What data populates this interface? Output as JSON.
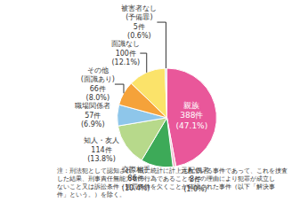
{
  "chart_data": {
    "type": "pie",
    "categories": [
      "親族",
      "元配偶者",
      "交際相手",
      "知人・友人",
      "職場関係者",
      "その他(面識あり)",
      "面識なし",
      "被害者なし(予備罪)"
    ],
    "values": [
      388,
      8,
      86,
      114,
      57,
      66,
      100,
      5
    ],
    "value_labels": [
      "388件",
      "8件",
      "86件",
      "114件",
      "57件",
      "66件",
      "100件",
      "5件"
    ],
    "percents": [
      47.1,
      1.0,
      10.4,
      13.8,
      6.9,
      8.0,
      12.1,
      0.6
    ],
    "percent_labels": [
      "(47.1%)",
      "(1.0%)",
      "(10.4%)",
      "(13.8%)",
      "(6.9%)",
      "(8.0%)",
      "(12.1%)",
      "(0.6%)"
    ],
    "colors": [
      "#e9579a",
      "#f6b7d0",
      "#3daa58",
      "#b7d98b",
      "#8ec6ea",
      "#f5a23a",
      "#fbe36a",
      "#d9d9d9"
    ],
    "data_labels": true,
    "annotations": [
      "注：刑法犯として認知され、既に統計に計上されている事件であって、これを捜査",
      "した結果、刑事責任無能力者の行為であることなどの理由により犯罪が成立し",
      "ないこと又は訴訟条件・処罰条件を欠くことが確認された事件（以下「解決事",
      "件」という。）を除く。"
    ]
  }
}
